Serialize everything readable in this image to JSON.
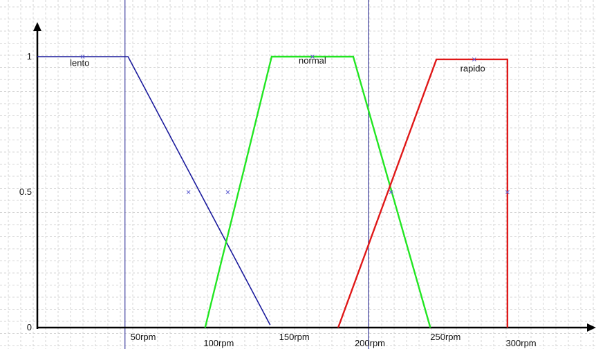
{
  "chart_data": {
    "type": "line",
    "title": "",
    "xlabel": "",
    "ylabel": "",
    "xlim": [
      -20,
      345
    ],
    "ylim": [
      0,
      1
    ],
    "grid": true,
    "x_ticks": [
      {
        "value": 50,
        "label": "50rpm"
      },
      {
        "value": 100,
        "label": "100rpm"
      },
      {
        "value": 150,
        "label": "150rpm"
      },
      {
        "value": 200,
        "label": "200rpm"
      },
      {
        "value": 250,
        "label": "250rpm"
      },
      {
        "value": 300,
        "label": "300rpm"
      }
    ],
    "y_ticks": [
      {
        "value": 0,
        "label": "0"
      },
      {
        "value": 0.5,
        "label": "0.5"
      },
      {
        "value": 1,
        "label": "1"
      }
    ],
    "vertical_markers": [
      38,
      199
    ],
    "series": [
      {
        "name": "lento",
        "color": "#1a1a9c",
        "x": [
          -20,
          40,
          134
        ],
        "y": [
          1,
          1,
          0.01
        ],
        "markers": [
          [
            10,
            1
          ],
          [
            80,
            0.5
          ]
        ]
      },
      {
        "name": "normal",
        "color": "#22e622",
        "x": [
          91,
          135,
          189,
          240
        ],
        "y": [
          0,
          1,
          1,
          0
        ],
        "markers": [
          [
            106,
            0.5
          ],
          [
            162,
            1
          ]
        ]
      },
      {
        "name": "rapido",
        "color": "#e01818",
        "x": [
          179,
          244,
          291,
          291
        ],
        "y": [
          0,
          0.99,
          0.99,
          0
        ],
        "markers": [
          [
            214,
            0.5
          ],
          [
            269,
            0.99
          ],
          [
            291,
            0.5
          ]
        ]
      }
    ]
  }
}
